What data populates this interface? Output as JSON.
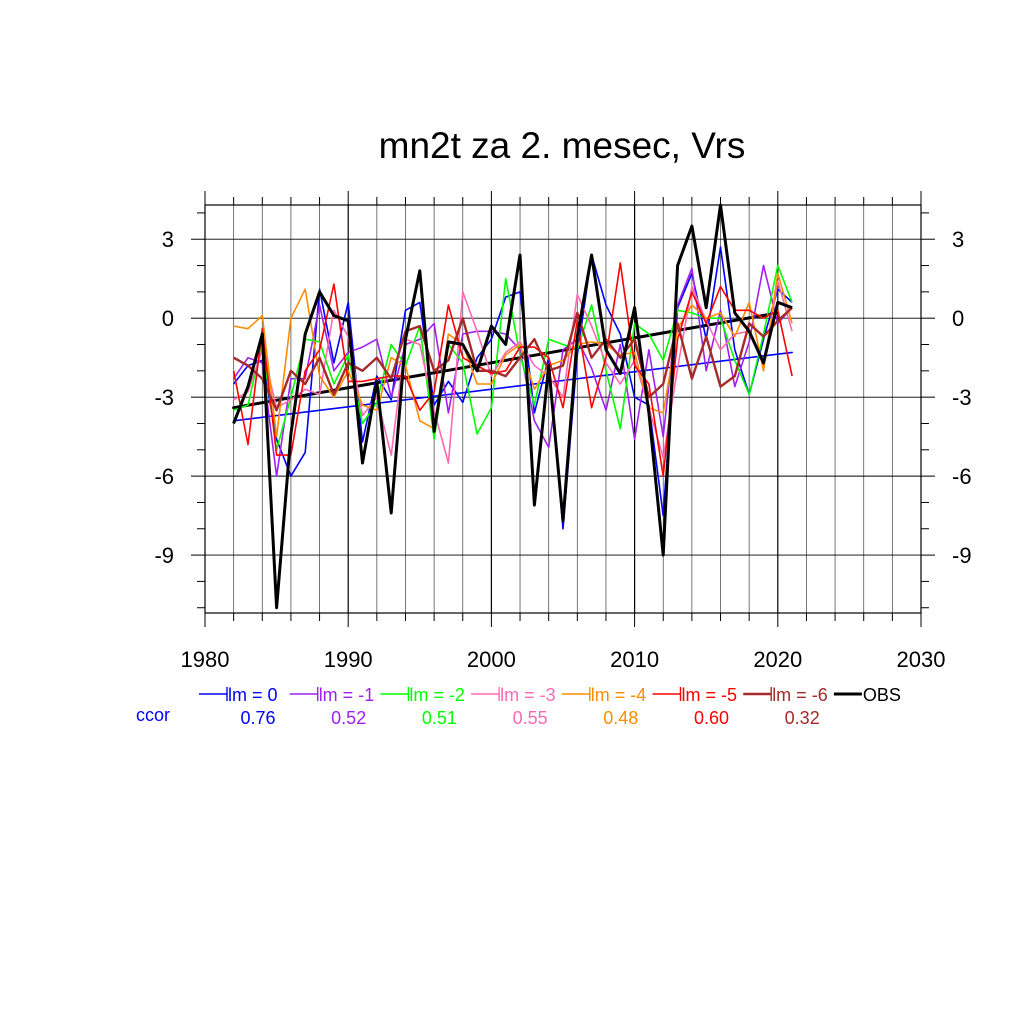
{
  "chart_data": {
    "type": "line",
    "title": "mn2t za 2. mesec, Vrs",
    "xlabel": "",
    "ylabel": "",
    "xlim": [
      1980,
      2030
    ],
    "ylim": [
      -11.2,
      4.3
    ],
    "x_ticks": [
      1980,
      1990,
      2000,
      2010,
      2020,
      2030
    ],
    "x_tick_labels": [
      "1980",
      "1990",
      "2000",
      "2010",
      "2020",
      "2030"
    ],
    "y_ticks": [
      3,
      0,
      -3,
      -6,
      -9
    ],
    "y_tick_labels": [
      "3",
      "0",
      "-3",
      "-6",
      "-9"
    ],
    "grid": true,
    "legend_position": "bottom",
    "ccor_label": "ccor",
    "x": [
      1982,
      1983,
      1984,
      1985,
      1986,
      1987,
      1988,
      1989,
      1990,
      1991,
      1992,
      1993,
      1994,
      1995,
      1996,
      1997,
      1998,
      1999,
      2000,
      2001,
      2002,
      2003,
      2004,
      2005,
      2006,
      2007,
      2008,
      2009,
      2010,
      2011,
      2012,
      2013,
      2014,
      2015,
      2016,
      2017,
      2018,
      2019,
      2020,
      2021
    ],
    "series": [
      {
        "name": "lm = 0",
        "color": "#0000ff",
        "width": 1.6,
        "ccor": "0.76",
        "values": [
          -2.5,
          -1.8,
          -1.6,
          -4.6,
          -6.0,
          -5.1,
          1.1,
          -1.7,
          0.6,
          -4.7,
          -2.2,
          -3.1,
          0.3,
          0.6,
          -3.3,
          -2.4,
          -3.2,
          -1.5,
          -0.8,
          0.8,
          1.0,
          -3.6,
          -1.5,
          -8.0,
          -1.4,
          2.4,
          0.5,
          -0.6,
          -3.0,
          -3.3,
          -7.5,
          0.4,
          1.7,
          -0.8,
          2.7,
          -1.2,
          -2.9,
          -0.8,
          1.1,
          0.6
        ]
      },
      {
        "name": "lm = -1",
        "color": "#a020f0",
        "width": 1.6,
        "ccor": "0.52",
        "values": [
          -2.3,
          -1.5,
          -1.7,
          -6.0,
          -2.3,
          -2.3,
          0.5,
          -2.0,
          -1.3,
          -1.1,
          -0.8,
          -3.0,
          -1.0,
          -0.8,
          -0.2,
          -3.6,
          -0.6,
          -0.5,
          -0.5,
          -0.6,
          -1.2,
          -3.9,
          -4.9,
          -1.2,
          -0.8,
          -1.9,
          -3.5,
          -1.0,
          -4.6,
          -1.2,
          -4.5,
          0.5,
          1.9,
          -2.0,
          0.3,
          -2.6,
          -0.9,
          2.0,
          -0.2,
          0.4
        ]
      },
      {
        "name": "lm = -2",
        "color": "#00ff00",
        "width": 1.6,
        "ccor": "0.51",
        "values": [
          -3.5,
          -3.3,
          -0.9,
          -5.0,
          -3.0,
          -0.8,
          -0.9,
          -2.5,
          -1.4,
          -4.0,
          -3.2,
          -1.0,
          -1.8,
          -0.3,
          -4.6,
          -1.0,
          -1.7,
          -4.4,
          -3.4,
          1.5,
          -1.4,
          -3.3,
          -0.8,
          -1.0,
          -1.2,
          0.5,
          -2.0,
          -4.2,
          -0.2,
          -0.6,
          -1.6,
          0.3,
          0.2,
          0.0,
          0.0,
          -1.6,
          -2.9,
          -0.6,
          2.0,
          0.6
        ]
      },
      {
        "name": "lm = -3",
        "color": "#ff69b4",
        "width": 1.6,
        "ccor": "0.55",
        "values": [
          -3.1,
          -2.8,
          -1.2,
          -3.4,
          -3.1,
          -2.7,
          -2.9,
          0.3,
          -0.7,
          -3.7,
          -3.0,
          -5.2,
          -0.8,
          -1.0,
          -3.5,
          -5.5,
          1.0,
          -0.5,
          -2.2,
          -1.3,
          -0.9,
          -1.8,
          -2.2,
          -3.0,
          0.9,
          -0.3,
          -1.7,
          -2.5,
          -1.6,
          -3.4,
          -5.3,
          -1.9,
          1.2,
          -0.1,
          -1.2,
          -0.6,
          -0.5,
          -1.8,
          1.4,
          -0.5
        ]
      },
      {
        "name": "lm = -4",
        "color": "#ff8c00",
        "width": 1.6,
        "ccor": "0.48",
        "values": [
          -0.3,
          -0.4,
          0.1,
          -4.5,
          0.0,
          1.1,
          -2.2,
          -3.0,
          -2.0,
          -3.3,
          -3.5,
          -1.5,
          -1.8,
          -3.9,
          -4.2,
          -0.6,
          -1.0,
          -2.5,
          -2.5,
          -1.4,
          -1.0,
          -2.7,
          -1.8,
          -1.6,
          -1.0,
          -0.9,
          -1.0,
          -1.4,
          -1.3,
          -3.4,
          -3.6,
          -0.4,
          0.5,
          0.0,
          0.2,
          -0.7,
          0.6,
          -2.0,
          1.7,
          -0.2
        ]
      },
      {
        "name": "lm = -5",
        "color": "#ff0000",
        "width": 1.6,
        "ccor": "0.60",
        "values": [
          -2.0,
          -4.8,
          -0.4,
          -5.2,
          -5.2,
          -2.0,
          -1.2,
          1.3,
          -2.4,
          -2.4,
          -2.3,
          -2.2,
          -2.2,
          -3.5,
          -2.8,
          0.5,
          -1.5,
          -1.8,
          -2.1,
          -2.0,
          -1.1,
          -1.1,
          -1.5,
          -3.4,
          -0.1,
          -3.4,
          -1.5,
          2.1,
          -1.8,
          -2.5,
          -6.0,
          -0.8,
          1.0,
          -0.2,
          1.2,
          0.3,
          0.3,
          0.0,
          0.3,
          -2.2
        ]
      },
      {
        "name": "lm = -6",
        "color": "#a52a2a",
        "width": 2.4,
        "ccor": "0.32",
        "values": [
          -1.5,
          -1.8,
          -2.3,
          -3.5,
          -2.0,
          -2.5,
          -1.5,
          -2.9,
          -1.7,
          -2.0,
          -1.5,
          -2.3,
          -0.5,
          -0.3,
          -2.0,
          -1.6,
          0.0,
          -2.0,
          -2.0,
          -2.2,
          -1.5,
          -0.8,
          -2.0,
          -1.8,
          0.2,
          -1.5,
          -0.8,
          -1.5,
          -0.8,
          -3.0,
          -2.5,
          -0.2,
          -2.3,
          -0.7,
          -2.6,
          -2.2,
          -0.2,
          -0.7,
          -0.1,
          0.4
        ]
      },
      {
        "name": "OBS",
        "color": "#000000",
        "width": 3.0,
        "ccor": "",
        "values": [
          -4.0,
          -2.6,
          -0.6,
          -11.0,
          -4.4,
          -0.6,
          1.0,
          0.1,
          -0.1,
          -5.5,
          -2.4,
          -7.4,
          -0.8,
          1.8,
          -4.3,
          -0.9,
          -1.0,
          -2.0,
          -0.3,
          -1.0,
          2.4,
          -7.1,
          -1.8,
          -7.7,
          -0.7,
          2.4,
          -1.2,
          -2.1,
          0.4,
          -3.6,
          -9.0,
          2.0,
          3.5,
          0.4,
          4.3,
          0.2,
          -0.5,
          -1.7,
          0.6,
          0.4
        ]
      }
    ],
    "trend_lines": [
      {
        "name": "lm = 0 trend",
        "color": "#0000ff",
        "width": 1.6,
        "x": [
          1982,
          2021
        ],
        "values": [
          -3.9,
          -1.3
        ]
      },
      {
        "name": "OBS trend",
        "color": "#000000",
        "width": 3.0,
        "x": [
          1982,
          2020
        ],
        "values": [
          -3.4,
          0.2
        ]
      }
    ]
  }
}
